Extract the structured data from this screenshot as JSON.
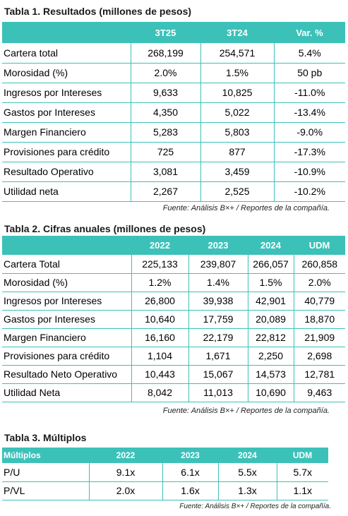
{
  "table1": {
    "title": "Tabla 1. Resultados (millones de pesos)",
    "headers": [
      "",
      "3T25",
      "3T24",
      "Var. %"
    ],
    "rows": [
      [
        "Cartera  total",
        "268,199",
        "254,571",
        "5.4%"
      ],
      [
        "Morosidad  (%)",
        "2.0%",
        "1.5%",
        "50 pb"
      ],
      [
        "Ingresos por Intereses",
        "9,633",
        "10,825",
        "-11.0%"
      ],
      [
        "Gastos por Intereses",
        "4,350",
        "5,022",
        "-13.4%"
      ],
      [
        "Margen Financiero",
        "5,283",
        "5,803",
        "-9.0%"
      ],
      [
        "Provisiones para crédito",
        "725",
        "877",
        "-17.3%"
      ],
      [
        "Resultado Operativo",
        "3,081",
        "3,459",
        "-10.9%"
      ],
      [
        "Utilidad neta",
        "2,267",
        "2,525",
        "-10.2%"
      ]
    ],
    "source": "Fuente: Análisis B×+ / Reportes de la compañía."
  },
  "table2": {
    "title": "Tabla 2. Cifras anuales (millones de pesos)",
    "headers": [
      "",
      "2022",
      "2023",
      "2024",
      "UDM"
    ],
    "rows": [
      [
        "Cartera Total",
        "225,133",
        "239,807",
        "266,057",
        "260,858"
      ],
      [
        "Morosidad (%)",
        "1.2%",
        "1.4%",
        "1.5%",
        "2.0%"
      ],
      [
        "Ingresos por Intereses",
        "26,800",
        "39,938",
        "42,901",
        "40,779"
      ],
      [
        "Gastos por Intereses",
        "10,640",
        "17,759",
        "20,089",
        "18,870"
      ],
      [
        "Margen Financiero",
        "16,160",
        "22,179",
        "22,812",
        "21,909"
      ],
      [
        "Provisiones para crédito",
        "1,104",
        "1,671",
        "2,250",
        "2,698"
      ],
      [
        "Resultado Neto Operativo",
        "10,443",
        "15,067",
        "14,573",
        "12,781"
      ],
      [
        "Utilidad Neta",
        "8,042",
        "11,013",
        "10,690",
        "9,463"
      ]
    ],
    "source": "Fuente: Análisis B×+ / Reportes de la compañía."
  },
  "table3": {
    "title": "Tabla 3. Múltiplos",
    "headers": [
      "Múltiplos",
      "2022",
      "2023",
      "2024",
      "UDM"
    ],
    "rows": [
      [
        "P/U",
        "9.1x",
        "6.1x",
        "5.5x",
        "5.7x"
      ],
      [
        "P/VL",
        "2.0x",
        "1.6x",
        "1.3x",
        "1.1x"
      ]
    ],
    "source": "Fuente: Análisis B×+ / Reportes de la compañía."
  },
  "colors": {
    "header_bg": "#3cc1b9",
    "header_text": "#ffffff",
    "border": "#3cc1b9"
  }
}
